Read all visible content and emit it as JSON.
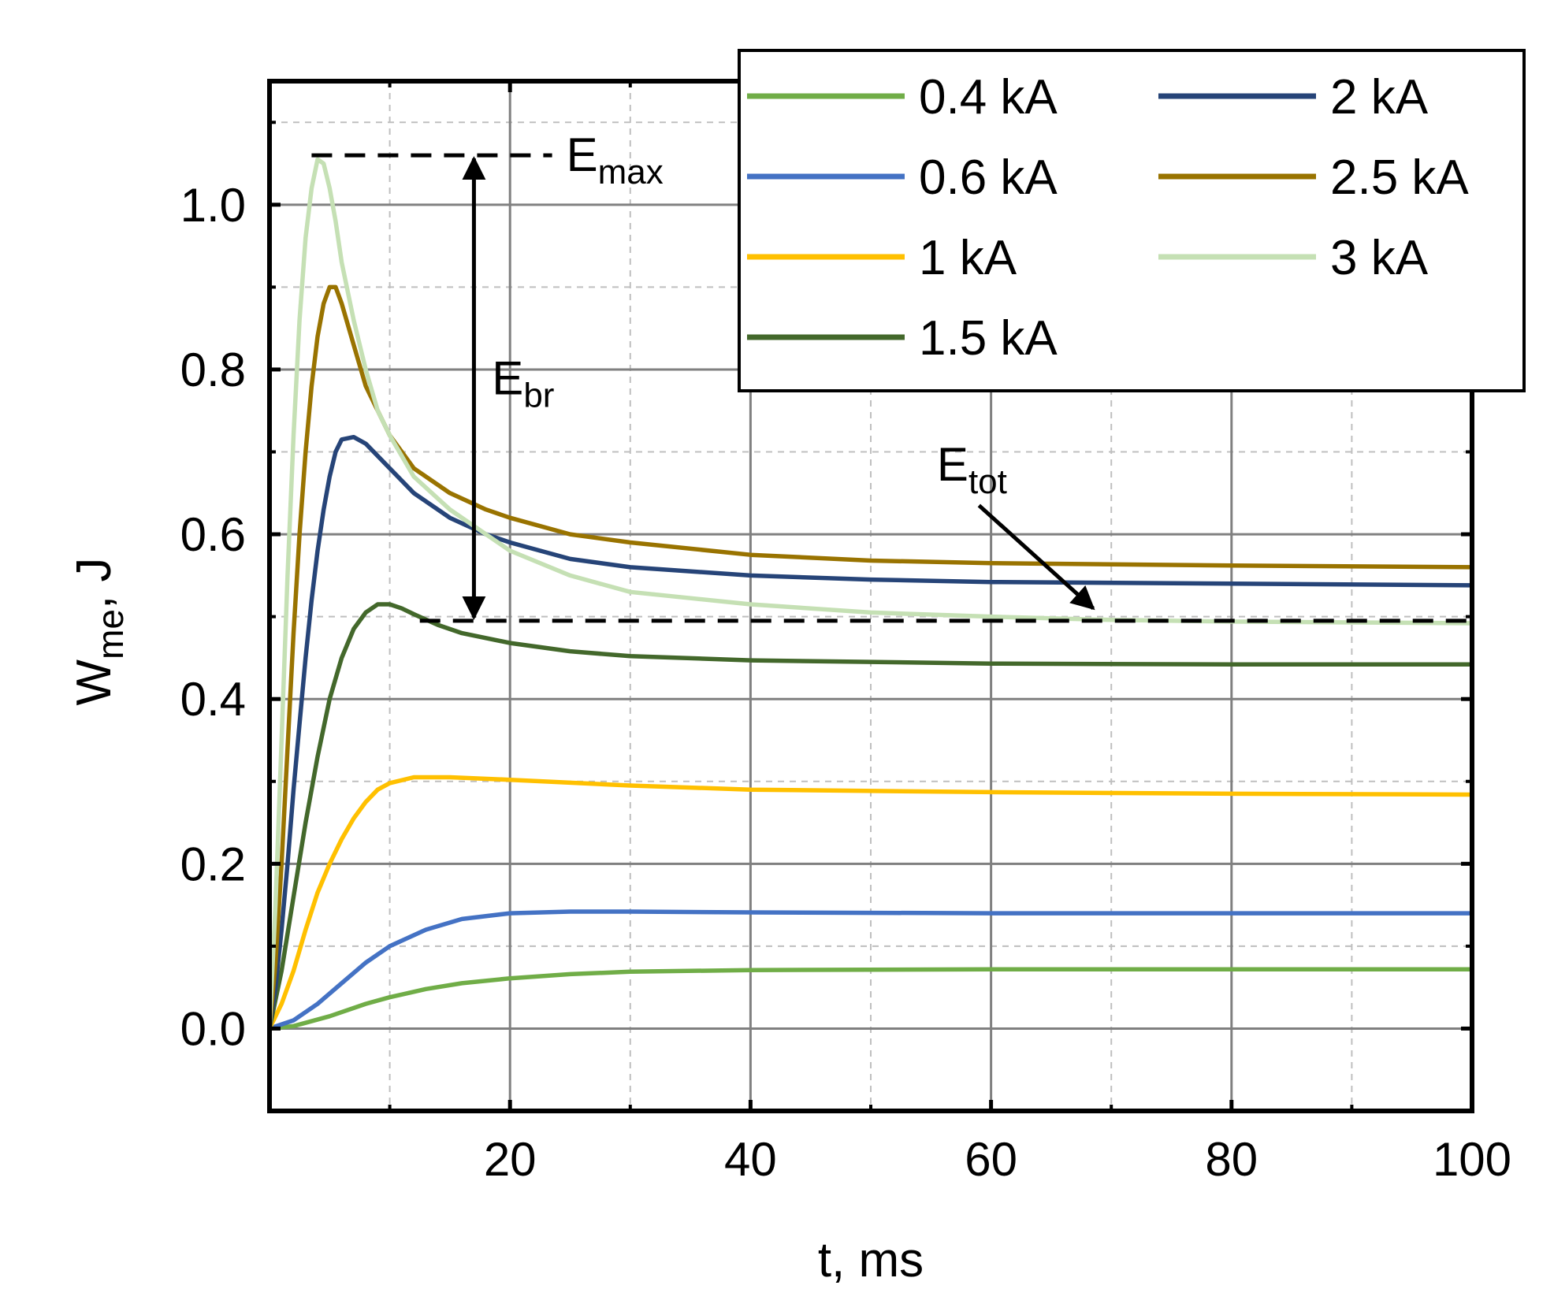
{
  "chart_data": {
    "type": "line",
    "title": "",
    "xlabel": "t, ms",
    "ylabel": {
      "base": "W",
      "sub": "me",
      "suffix": ", J"
    },
    "xlim": [
      0,
      100
    ],
    "ylim": [
      -0.1,
      1.15
    ],
    "xticks": [
      20,
      40,
      60,
      80,
      100
    ],
    "xtick_labels": [
      "20",
      "40",
      "60",
      "80",
      "100"
    ],
    "xminor": [
      10,
      30,
      50,
      70,
      90
    ],
    "yticks": [
      0.0,
      0.2,
      0.4,
      0.6,
      0.8,
      1.0
    ],
    "ytick_labels": [
      "0.0",
      "0.2",
      "0.4",
      "0.6",
      "0.8",
      "1.0"
    ],
    "yminor": [
      0.1,
      0.3,
      0.5,
      0.7,
      0.9,
      1.1
    ],
    "grid": true,
    "legend_position": "top-right",
    "series": [
      {
        "name": "0.4 kA",
        "color": "#70ad47",
        "x": [
          0,
          2,
          5,
          8,
          10,
          13,
          16,
          20,
          25,
          30,
          40,
          60,
          80,
          100
        ],
        "y": [
          0,
          0.003,
          0.015,
          0.03,
          0.038,
          0.048,
          0.055,
          0.061,
          0.066,
          0.069,
          0.071,
          0.072,
          0.072,
          0.072
        ]
      },
      {
        "name": "0.6 kA",
        "color": "#4472c4",
        "x": [
          0,
          2,
          4,
          6,
          8,
          10,
          13,
          16,
          20,
          25,
          30,
          40,
          60,
          80,
          100
        ],
        "y": [
          0,
          0.01,
          0.03,
          0.055,
          0.08,
          0.1,
          0.12,
          0.133,
          0.14,
          0.142,
          0.142,
          0.141,
          0.14,
          0.14,
          0.14
        ]
      },
      {
        "name": "1 kA",
        "color": "#ffc000",
        "x": [
          0,
          1,
          2,
          3,
          4,
          5,
          6,
          7,
          8,
          9,
          10,
          12,
          15,
          20,
          30,
          40,
          60,
          80,
          100
        ],
        "y": [
          0,
          0.03,
          0.07,
          0.12,
          0.165,
          0.2,
          0.23,
          0.255,
          0.275,
          0.29,
          0.298,
          0.305,
          0.305,
          0.302,
          0.295,
          0.29,
          0.287,
          0.285,
          0.284
        ]
      },
      {
        "name": "1.5 kA",
        "color": "#43682b",
        "x": [
          0,
          1,
          2,
          3,
          4,
          5,
          6,
          7,
          8,
          9,
          10,
          11,
          12,
          14,
          16,
          20,
          25,
          30,
          40,
          60,
          80,
          100
        ],
        "y": [
          0,
          0.07,
          0.16,
          0.25,
          0.33,
          0.4,
          0.45,
          0.485,
          0.505,
          0.515,
          0.515,
          0.51,
          0.503,
          0.49,
          0.48,
          0.468,
          0.458,
          0.452,
          0.447,
          0.443,
          0.442,
          0.442
        ]
      },
      {
        "name": "2 kA",
        "color": "#264478",
        "x": [
          0,
          0.5,
          1,
          1.5,
          2,
          2.5,
          3,
          3.5,
          4,
          4.5,
          5,
          5.5,
          6,
          7,
          8,
          10,
          12,
          15,
          18,
          20,
          25,
          30,
          40,
          50,
          60,
          80,
          100
        ],
        "y": [
          0,
          0.05,
          0.12,
          0.2,
          0.29,
          0.37,
          0.45,
          0.52,
          0.58,
          0.63,
          0.67,
          0.7,
          0.715,
          0.718,
          0.71,
          0.68,
          0.65,
          0.62,
          0.6,
          0.59,
          0.57,
          0.56,
          0.55,
          0.545,
          0.542,
          0.54,
          0.538
        ]
      },
      {
        "name": "2.5 kA",
        "color": "#997300",
        "x": [
          0,
          0.5,
          1,
          1.5,
          2,
          2.5,
          3,
          3.5,
          4,
          4.5,
          5,
          5.5,
          6,
          7,
          8,
          10,
          12,
          15,
          18,
          20,
          25,
          30,
          40,
          50,
          60,
          80,
          100
        ],
        "y": [
          0,
          0.08,
          0.2,
          0.34,
          0.48,
          0.6,
          0.7,
          0.78,
          0.84,
          0.88,
          0.9,
          0.9,
          0.88,
          0.83,
          0.78,
          0.72,
          0.68,
          0.65,
          0.63,
          0.62,
          0.6,
          0.59,
          0.575,
          0.568,
          0.565,
          0.562,
          0.56
        ]
      },
      {
        "name": "3 kA",
        "color": "#c5e0b4",
        "x": [
          0,
          0.5,
          1,
          1.5,
          2,
          2.5,
          3,
          3.5,
          4,
          4.5,
          5,
          5.5,
          6,
          7,
          8,
          9,
          10,
          12,
          15,
          18,
          20,
          25,
          30,
          40,
          50,
          60,
          70,
          80,
          90,
          100
        ],
        "y": [
          0,
          0.15,
          0.35,
          0.55,
          0.72,
          0.86,
          0.96,
          1.02,
          1.055,
          1.05,
          1.02,
          0.98,
          0.93,
          0.86,
          0.8,
          0.75,
          0.72,
          0.67,
          0.63,
          0.6,
          0.58,
          0.55,
          0.53,
          0.515,
          0.505,
          0.5,
          0.496,
          0.494,
          0.493,
          0.492
        ]
      }
    ],
    "annotations": {
      "emax": {
        "label_base": "E",
        "label_sub": "max",
        "y": 1.06,
        "x_start": 3.5,
        "x_end": 23.5
      },
      "etot": {
        "label_base": "E",
        "label_sub": "tot",
        "y": 0.495,
        "x_start": 12.5,
        "x_end": 100,
        "arrow_from": [
          59,
          0.635
        ],
        "arrow_to": [
          68.5,
          0.51
        ]
      },
      "ebr": {
        "label_base": "E",
        "label_sub": "br",
        "x": 17,
        "y_top": 1.06,
        "y_bottom": 0.495,
        "label_x": 18.5,
        "label_y": 0.77
      }
    }
  }
}
